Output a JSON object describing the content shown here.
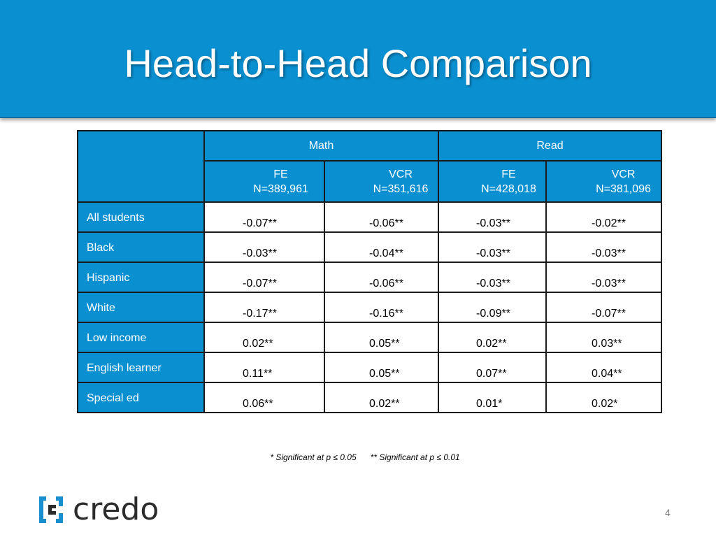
{
  "slide": {
    "title": "Head-to-Head Comparison",
    "page_number": "4",
    "colors": {
      "accent": "#0a8fd0",
      "text": "#000000"
    }
  },
  "table": {
    "groups": [
      "Math",
      "Read"
    ],
    "columns": [
      {
        "method": "FE",
        "n": "N=389,961"
      },
      {
        "method": "VCR",
        "n": "N=351,616"
      },
      {
        "method": "FE",
        "n": "N=428,018"
      },
      {
        "method": "VCR",
        "n": "N=381,096"
      }
    ],
    "rows": [
      {
        "label": "All students",
        "values": [
          "-0.07**",
          "-0.06**",
          "-0.03**",
          "-0.02**"
        ]
      },
      {
        "label": "Black",
        "values": [
          "-0.03**",
          "-0.04**",
          "-0.03**",
          "-0.03**"
        ]
      },
      {
        "label": "Hispanic",
        "values": [
          "-0.07**",
          "-0.06**",
          "-0.03**",
          "-0.03**"
        ]
      },
      {
        "label": "White",
        "values": [
          "-0.17**",
          "-0.16**",
          "-0.09**",
          "-0.07**"
        ]
      },
      {
        "label": "Low income",
        "values": [
          "0.02**",
          "0.05**",
          "0.02**",
          "0.03**"
        ]
      },
      {
        "label": "English learner",
        "values": [
          "0.11**",
          "0.05**",
          "0.07**",
          "0.04**"
        ]
      },
      {
        "label": "Special ed",
        "values": [
          "0.06**",
          "0.02**",
          "0.01*",
          "0.02*"
        ]
      }
    ]
  },
  "footnote": {
    "sig05": "* Significant at p ≤ 0.05",
    "sig01": "** Significant at p ≤ 0.01"
  },
  "logo": {
    "text": "credo",
    "icon": "credo-logo-icon"
  }
}
